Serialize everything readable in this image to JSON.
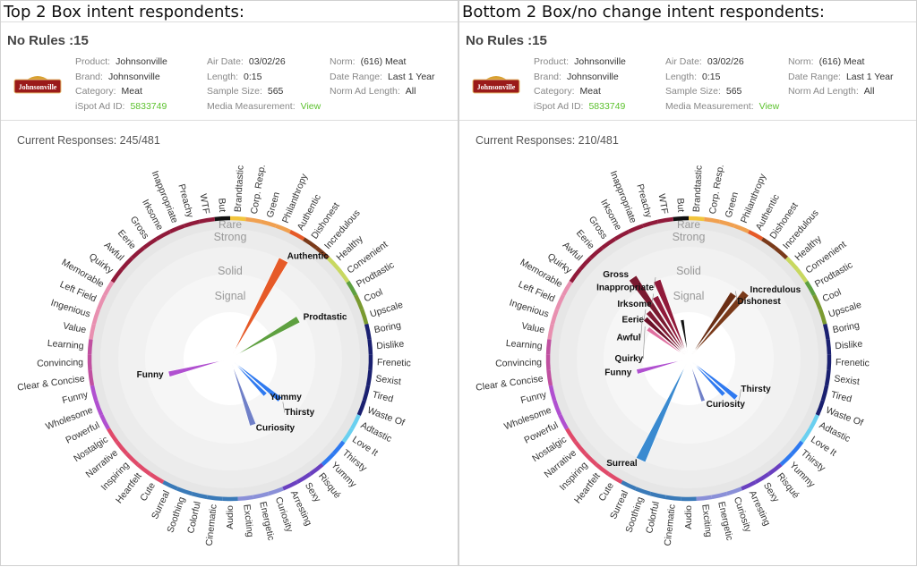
{
  "panels": [
    {
      "title": "Top 2 Box intent respondents:",
      "rules": "No Rules :15",
      "info": {
        "product": "Johnsonville",
        "brand": "Johnsonville",
        "category": "Meat",
        "ispot_ad_id": "5833749",
        "air_date": "03/02/26",
        "length": "0:15",
        "sample_size": "565",
        "media_measurement": "View",
        "norm": "(616) Meat",
        "date_range": "Last 1 Year",
        "norm_ad_length": "All"
      },
      "responses": "Current Responses: 245/481"
    },
    {
      "title": "Bottom 2 Box/no change intent respondents:",
      "rules": "No Rules :15",
      "info": {
        "product": "Johnsonville",
        "brand": "Johnsonville",
        "category": "Meat",
        "ispot_ad_id": "5833749",
        "air_date": "03/02/26",
        "length": "0:15",
        "sample_size": "565",
        "media_measurement": "View",
        "norm": "(616) Meat",
        "date_range": "Last 1 Year",
        "norm_ad_length": "All"
      },
      "responses": "Current Responses: 210/481"
    }
  ],
  "labels": {
    "product": "Product:",
    "brand": "Brand:",
    "category": "Category:",
    "ispot": "iSpot Ad ID:",
    "air_date": "Air Date:",
    "length": "Length:",
    "sample": "Sample Size:",
    "media": "Media Measurement:",
    "norm": "Norm:",
    "date_range": "Date Range:",
    "norm_len": "Norm Ad Length:"
  },
  "logo_text": "Johnsonville",
  "chart_data": {
    "type": "radial-bar",
    "bands": [
      "Signal",
      "Solid",
      "Strong",
      "Rare"
    ],
    "scale": [
      0,
      1
    ],
    "categories": [
      "But",
      "Brandtastic",
      "Corp. Resp.",
      "Green",
      "Philanthropy",
      "Authentic",
      "Dishonest",
      "Incredulous",
      "Healthy",
      "Convenient",
      "Prodtastic",
      "Cool",
      "Upscale",
      "Boring",
      "Dislike",
      "Frenetic",
      "Sexist",
      "Tired",
      "Waste Of",
      "Adtastic",
      "Love It",
      "Thirsty",
      "Yummy",
      "Risqué",
      "Sexy",
      "Arresting",
      "Curiosity",
      "Energetic",
      "Exciting",
      "Audio",
      "Cinematic",
      "Colorful",
      "Soothing",
      "Surreal",
      "Cute",
      "Heartfelt",
      "Inspiring",
      "Narrative",
      "Nostalgic",
      "Powerful",
      "Wholesome",
      "Funny",
      "Clear & Concise",
      "Convincing",
      "Learning",
      "Value",
      "Ingenious",
      "Left Field",
      "Memorable",
      "Quirky",
      "Awful",
      "Eerie",
      "Gross",
      "Irksome",
      "Inappropriate",
      "Preachy",
      "WTF"
    ],
    "colors": [
      "#111111",
      "#f2c53d",
      "#f0a050",
      "#f0a050",
      "#f0a050",
      "#e65a28",
      "#7a3a1a",
      "#7a3a1a",
      "#c8d860",
      "#c8d860",
      "#5ea040",
      "#7a9a30",
      "#7a9a30",
      "#1a2070",
      "#1a2070",
      "#1a2070",
      "#1a2070",
      "#1a2070",
      "#1a2070",
      "#6ad0f0",
      "#6ad0f0",
      "#2f7af0",
      "#2f7af0",
      "#6a40c0",
      "#6a40c0",
      "#6a40c0",
      "#8a90d8",
      "#8a90d8",
      "#8a90d8",
      "#3a7ab8",
      "#3a7ab8",
      "#3a7ab8",
      "#3a7ab8",
      "#3a7ab8",
      "#e04a6a",
      "#e04a6a",
      "#e04a6a",
      "#e04a6a",
      "#e04a6a",
      "#b050d0",
      "#b050d0",
      "#b050d0",
      "#c050a0",
      "#c050a0",
      "#c050a0",
      "#e890b0",
      "#e890b0",
      "#e890b0",
      "#e890b0",
      "#901a3a",
      "#901a3a",
      "#901a3a",
      "#901a3a",
      "#901a3a",
      "#901a3a",
      "#901a3a",
      "#901a3a"
    ],
    "series": [
      {
        "name": "Top 2 Box",
        "spokes": [
          {
            "label": "Authentic",
            "value": 0.8,
            "color": "#e65a28"
          },
          {
            "label": "Prodtastic",
            "value": 0.56,
            "color": "#5ea040"
          },
          {
            "label": "Funny",
            "value": 0.45,
            "color": "#b050d0"
          },
          {
            "label": "Yummy",
            "value": 0.36,
            "color": "#2f7af0"
          },
          {
            "label": "Thirsty",
            "value": 0.46,
            "color": "#2f7af0"
          },
          {
            "label": "Curiosity",
            "value": 0.5,
            "color": "#7080c8"
          }
        ]
      },
      {
        "name": "Bottom 2 Box/no change",
        "spokes": [
          {
            "label": "Gross",
            "value": 0.7,
            "color": "#7a1a30"
          },
          {
            "label": "Inappropriate",
            "value": 0.6,
            "color": "#901a3a"
          },
          {
            "label": "Irksome",
            "value": 0.5,
            "color": "#901a3a"
          },
          {
            "label": "Eerie",
            "value": 0.44,
            "color": "#801a34"
          },
          {
            "label": "Awful",
            "value": 0.42,
            "color": "#6a1028"
          },
          {
            "label": "Quirky",
            "value": 0.36,
            "color": "#e070a0"
          },
          {
            "label": "WTF",
            "value": 0.28,
            "color": "#111111",
            "hide_label": true
          },
          {
            "label": "Incredulous",
            "value": 0.62,
            "color": "#7a3a1a"
          },
          {
            "label": "Dishonest",
            "value": 0.56,
            "color": "#6a2e14"
          },
          {
            "label": "Funny",
            "value": 0.38,
            "color": "#b050d0"
          },
          {
            "label": "Surreal",
            "value": 0.8,
            "color": "#3a8ad0"
          },
          {
            "label": "Curiosity",
            "value": 0.32,
            "color": "#7080c8"
          },
          {
            "label": "Thirsty",
            "value": 0.44,
            "color": "#2f7af0"
          },
          {
            "label": "Yummy",
            "value": 0.36,
            "color": "#2f7af0",
            "hide_label": true
          }
        ]
      }
    ]
  }
}
